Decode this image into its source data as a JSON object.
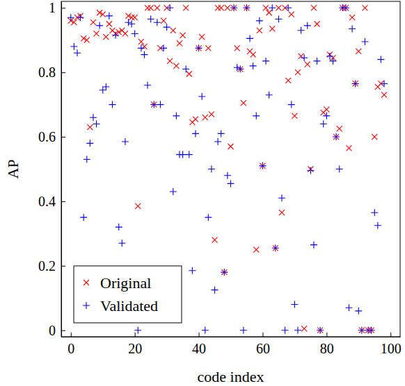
{
  "chart_data": {
    "type": "scatter",
    "x_label": "code index",
    "y_label": "AP",
    "x": [
      0,
      1,
      2,
      3,
      4,
      5,
      6,
      7,
      8,
      9,
      10,
      11,
      12,
      13,
      14,
      15,
      16,
      17,
      18,
      19,
      20,
      21,
      22,
      23,
      24,
      25,
      26,
      27,
      28,
      29,
      30,
      31,
      32,
      33,
      34,
      35,
      36,
      37,
      38,
      39,
      40,
      41,
      42,
      43,
      44,
      45,
      46,
      47,
      48,
      49,
      50,
      51,
      52,
      53,
      54,
      55,
      56,
      57,
      58,
      59,
      60,
      61,
      62,
      63,
      64,
      65,
      66,
      67,
      68,
      69,
      70,
      71,
      72,
      73,
      74,
      75,
      76,
      77,
      78,
      79,
      80,
      81,
      82,
      83,
      84,
      85,
      86,
      87,
      88,
      89,
      90,
      91,
      92,
      93,
      94,
      95,
      96,
      97,
      98
    ],
    "series": [
      {
        "name": "Original",
        "color": "#ff0000",
        "marker": "x",
        "values": [
          0.96,
          0.955,
          0.97,
          0.975,
          0.905,
          0.9,
          0.63,
          0.955,
          0.92,
          0.985,
          0.98,
          0.91,
          0.95,
          0.93,
          0.92,
          0.925,
          0.93,
          0.92,
          0.975,
          0.97,
          0.97,
          0.385,
          0.895,
          0.88,
          1,
          1,
          0.7,
          1,
          0.875,
          0.96,
          1,
          0.835,
          0.93,
          0.82,
          0.89,
          0.915,
          1,
          0.795,
          0.645,
          0.655,
          0.875,
          0.91,
          0.66,
          0.875,
          0.67,
          0.28,
          1,
          1,
          0.18,
          1,
          0.57,
          1,
          0.875,
          0.81,
          0.705,
          1,
          0.865,
          0.855,
          0.25,
          0.93,
          0.51,
          1,
          0.985,
          0.935,
          0.255,
          1,
          0.365,
          1,
          0.775,
          0.98,
          0.665,
          0.8,
          0.85,
          0.005,
          0.825,
          0.5,
          1,
          0.95,
          0,
          0.675,
          0.685,
          0.855,
          0.845,
          0.6,
          0.625,
          1,
          1,
          0.565,
          0.97,
          0.765,
          0.865,
          0,
          1,
          0,
          0,
          0.6,
          0.755,
          0.765,
          0.73
        ]
      },
      {
        "name": "Validated",
        "color": "#0000ff",
        "marker": "+",
        "values": [
          0.97,
          0.88,
          0.86,
          0.97,
          0.35,
          0.53,
          0.58,
          0.66,
          0.64,
          0.945,
          0.745,
          0.755,
          0.975,
          0.7,
          0.915,
          0.32,
          0.27,
          0.585,
          0.955,
          0.95,
          0.92,
          0,
          0.875,
          0.855,
          0.76,
          0.965,
          0.7,
          0.955,
          0.7,
          0.875,
          0.94,
          1,
          0.43,
          0.665,
          0.545,
          0.545,
          0.81,
          0.545,
          0.185,
          0.61,
          0.875,
          0.725,
          0,
          0.35,
          0.5,
          0.125,
          0.585,
          0.61,
          0.18,
          0.48,
          0.455,
          1,
          0.815,
          0.81,
          0,
          1,
          0.905,
          0.82,
          0.665,
          0.96,
          0.51,
          0.835,
          0.73,
          1,
          0.255,
          0.965,
          0.41,
          0,
          1,
          0.7,
          0.08,
          0,
          0.93,
          0.845,
          0.945,
          0.495,
          0.265,
          0.835,
          0,
          0.64,
          0.665,
          0.85,
          0.835,
          0.6,
          0.5,
          1,
          1,
          0.07,
          0.935,
          0.765,
          0.06,
          0,
          0.895,
          0,
          0,
          0.365,
          0.325,
          0.84,
          0.765
        ]
      }
    ],
    "xlim": [
      -3,
      103
    ],
    "xticks": [
      0,
      20,
      40,
      60,
      80,
      100
    ],
    "ylim": [
      -0.02,
      1.02
    ],
    "yticks": [
      0,
      0.2,
      0.4,
      0.6,
      0.8,
      1
    ],
    "legend": "lower-left",
    "grid": false
  }
}
